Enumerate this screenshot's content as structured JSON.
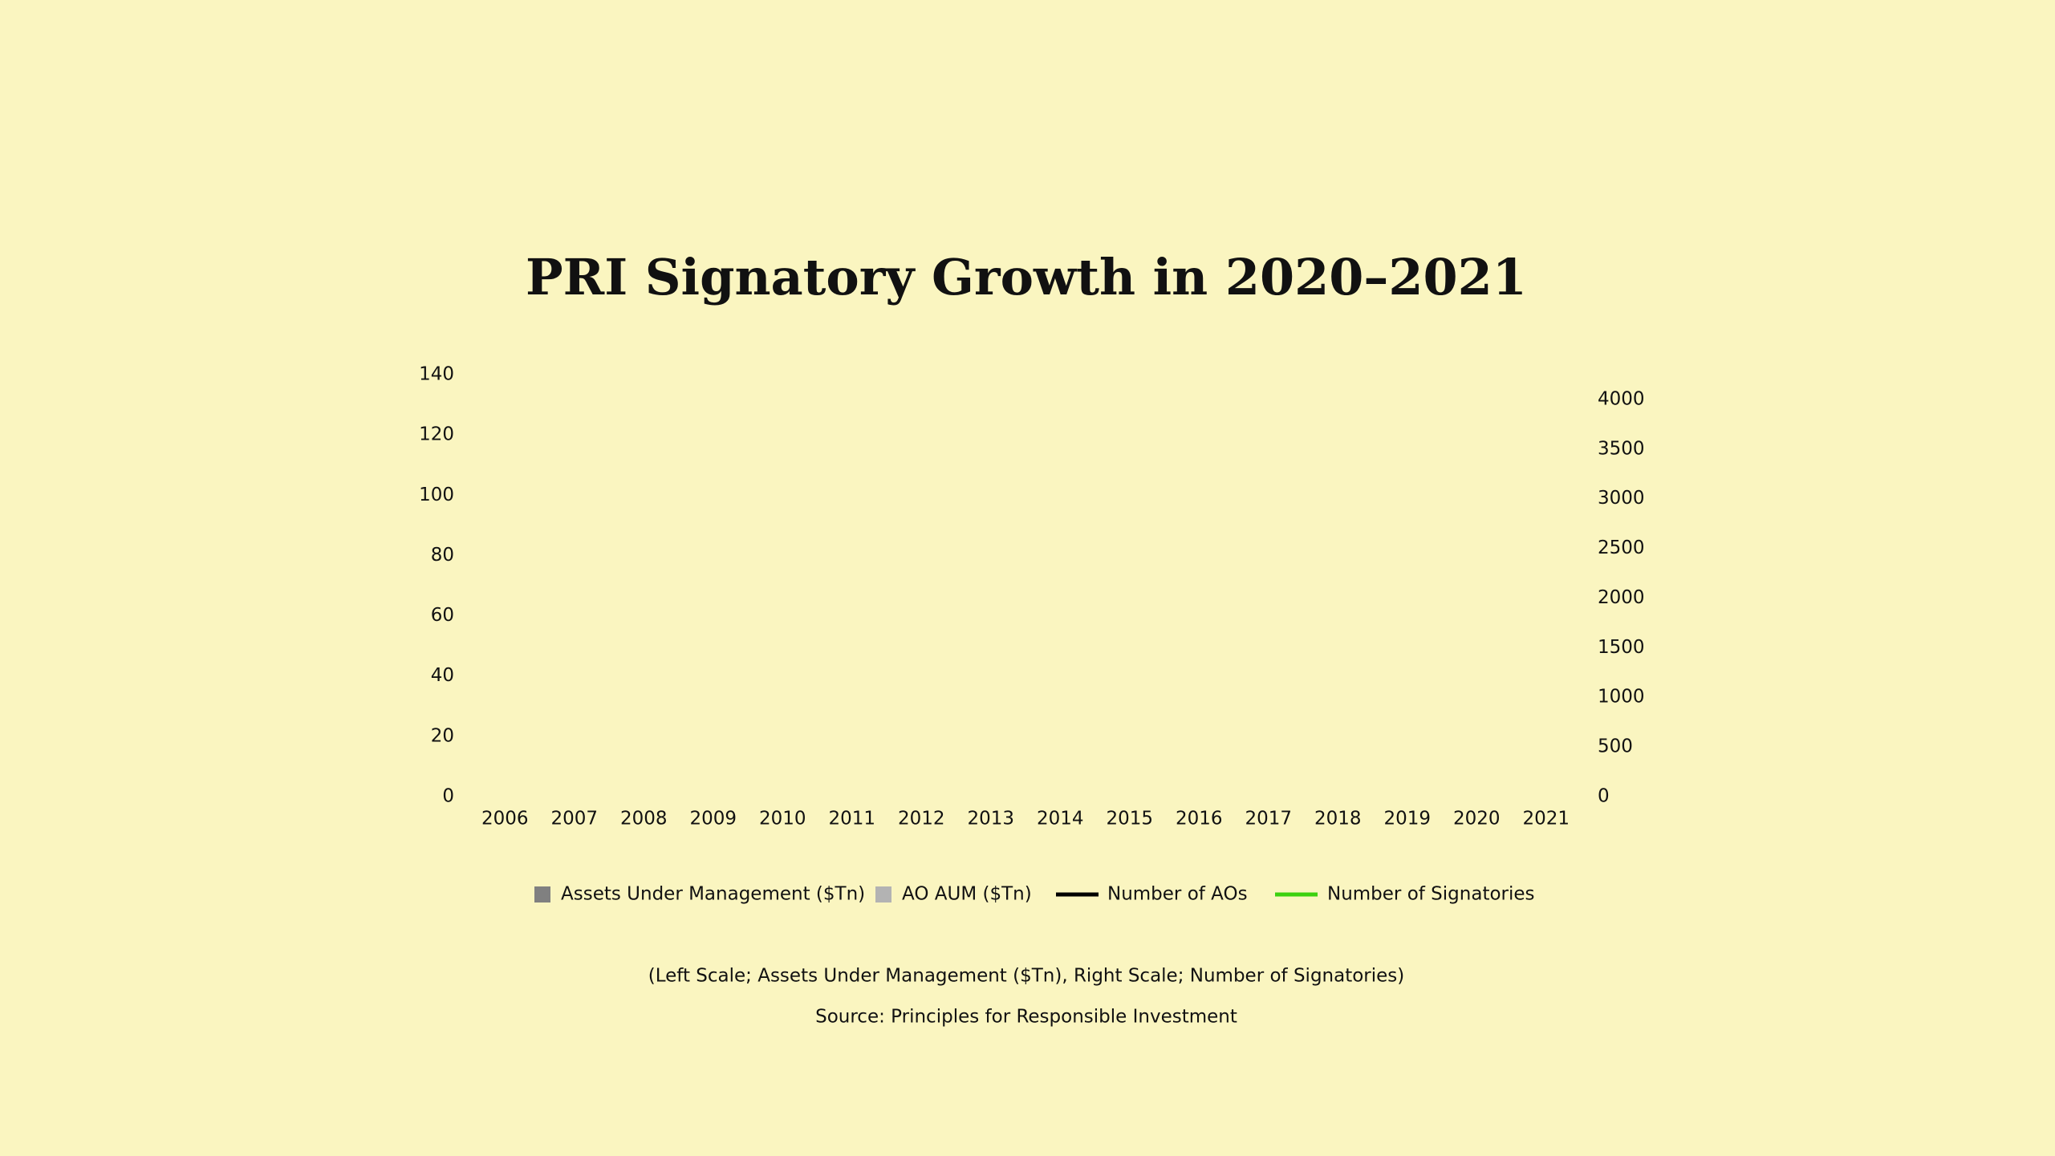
{
  "chart_data": {
    "type": "bar",
    "title": "PRI Signatory Growth in 2020–2021",
    "categories": [
      "2006",
      "2007",
      "2008",
      "2009",
      "2010",
      "2011",
      "2012",
      "2013",
      "2014",
      "2015",
      "2016",
      "2017",
      "2018",
      "2019",
      "2020",
      "2021"
    ],
    "series": [
      {
        "name": "Assets Under Management ($Tn)",
        "type": "bar",
        "color": "#808080",
        "values": [
          null,
          null,
          null,
          null,
          null,
          null,
          null,
          null,
          null,
          null,
          null,
          null,
          null,
          null,
          null,
          null
        ]
      },
      {
        "name": "AO AUM ($Tn)",
        "type": "bar",
        "color": "#b3b3b3",
        "values": [
          null,
          null,
          null,
          null,
          null,
          null,
          null,
          null,
          null,
          null,
          null,
          null,
          null,
          null,
          null,
          null
        ]
      },
      {
        "name": "Number of AOs",
        "type": "line",
        "axis": "y2",
        "color": "#000000",
        "values": [
          null,
          null,
          null,
          null,
          null,
          null,
          null,
          null,
          null,
          null,
          null,
          null,
          null,
          null,
          null,
          null
        ]
      },
      {
        "name": "Number of Signatories",
        "type": "line",
        "axis": "y2",
        "color": "#3cd10f",
        "values": [
          null,
          null,
          null,
          null,
          null,
          null,
          null,
          null,
          null,
          null,
          null,
          null,
          null,
          null,
          null,
          null
        ]
      }
    ],
    "ylim": [
      0,
      140
    ],
    "yticks": [
      0,
      20,
      40,
      60,
      80,
      100,
      120,
      140
    ],
    "y2lim": [
      0,
      4250
    ],
    "y2ticks": [
      0,
      500,
      1000,
      1500,
      2000,
      2500,
      3000,
      3500,
      4000
    ],
    "annotations": [
      "(Left Scale; Assets Under Management ($Tn),  Right Scale; Number of Signatories)",
      "Source: Principles for Responsible Investment"
    ]
  }
}
